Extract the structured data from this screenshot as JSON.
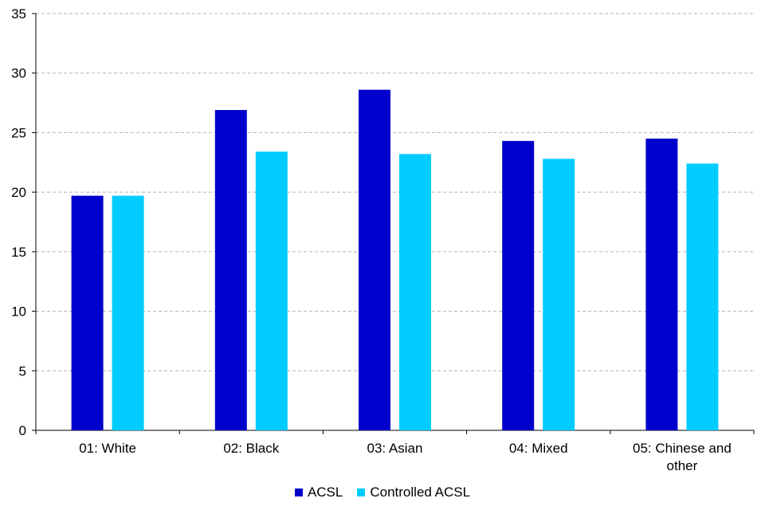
{
  "chart_data": {
    "type": "bar",
    "title": "",
    "xlabel": "",
    "ylabel": "",
    "categories": [
      "01: White",
      "02: Black",
      "03: Asian",
      "04: Mixed",
      "05: Chinese and other"
    ],
    "category_lines": [
      [
        "01: White"
      ],
      [
        "02: Black"
      ],
      [
        "03: Asian"
      ],
      [
        "04: Mixed"
      ],
      [
        "05: Chinese and",
        "other"
      ]
    ],
    "series": [
      {
        "name": "ACSL",
        "color": "#0000cc",
        "values": [
          19.7,
          26.9,
          28.6,
          24.3,
          24.5
        ]
      },
      {
        "name": "Controlled ACSL",
        "color": "#00ccff",
        "values": [
          19.7,
          23.4,
          23.2,
          22.8,
          22.4
        ]
      }
    ],
    "ylim": [
      0,
      35
    ],
    "yticks": [
      "0",
      "5",
      "10",
      "15",
      "20",
      "25",
      "30",
      "35"
    ],
    "grid": true,
    "grid_style": "dashed",
    "legend_position": "bottom"
  }
}
